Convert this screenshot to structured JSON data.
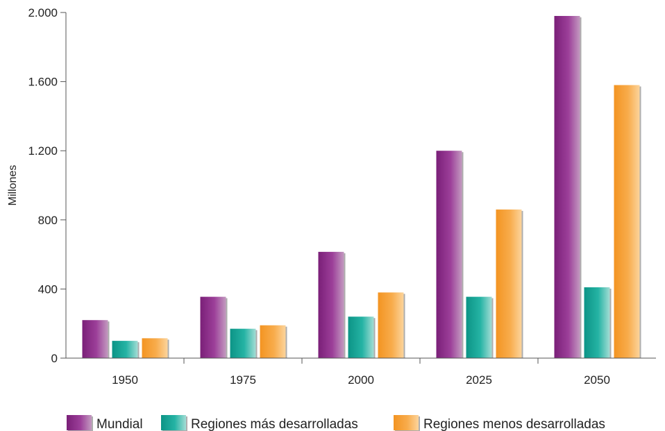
{
  "chart_data": {
    "type": "bar",
    "title": "",
    "xlabel": "",
    "ylabel": "Millones",
    "ylim": [
      0,
      2000
    ],
    "yticks": [
      0,
      400,
      800,
      1200,
      1600,
      2000
    ],
    "ytick_labels": [
      "0",
      "400",
      "800",
      "1.200",
      "1.600",
      "2.000"
    ],
    "categories": [
      "1950",
      "1975",
      "2000",
      "2025",
      "2050"
    ],
    "grid": false,
    "legend_position": "bottom",
    "series": [
      {
        "name": "Mundial",
        "color": "#8e2f8c",
        "values": [
          220,
          355,
          615,
          1200,
          1980
        ]
      },
      {
        "name": "Regiones más desarrolladas",
        "color": "#1aa89a",
        "values": [
          100,
          170,
          240,
          355,
          410
        ]
      },
      {
        "name": "Regiones menos desarrolladas",
        "color": "#f7a43c",
        "values": [
          115,
          190,
          380,
          860,
          1580
        ]
      }
    ]
  }
}
